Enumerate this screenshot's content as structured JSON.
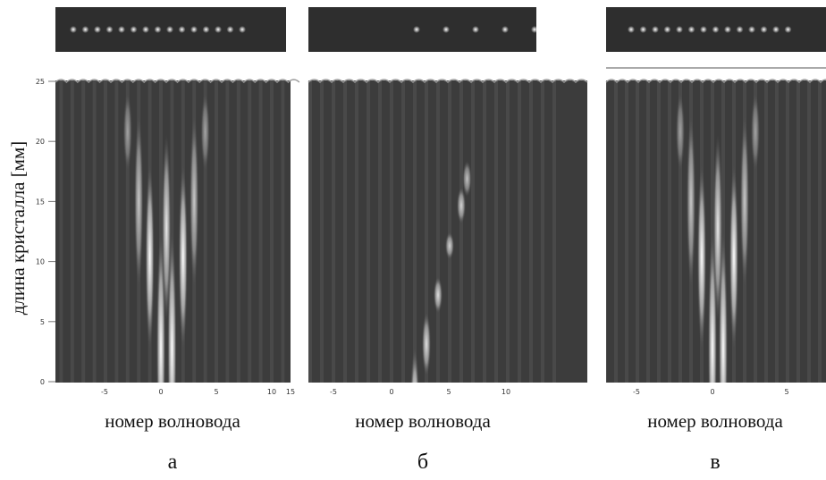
{
  "y_axis": {
    "title": "длина кристалла [мм]",
    "ticks": [
      "25",
      "20",
      "15",
      "10",
      "5",
      "0"
    ]
  },
  "panels": [
    {
      "letter": "а",
      "x_title": "номер волновода",
      "x_ticks": [
        "-5",
        "0",
        "5",
        "10",
        "15"
      ]
    },
    {
      "letter": "б",
      "x_title": "номер волновода",
      "x_ticks": [
        "-5",
        "0",
        "5",
        "10"
      ]
    },
    {
      "letter": "в",
      "x_title": "номер волновода",
      "x_ticks": [
        "-5",
        "0",
        "5"
      ]
    }
  ]
}
